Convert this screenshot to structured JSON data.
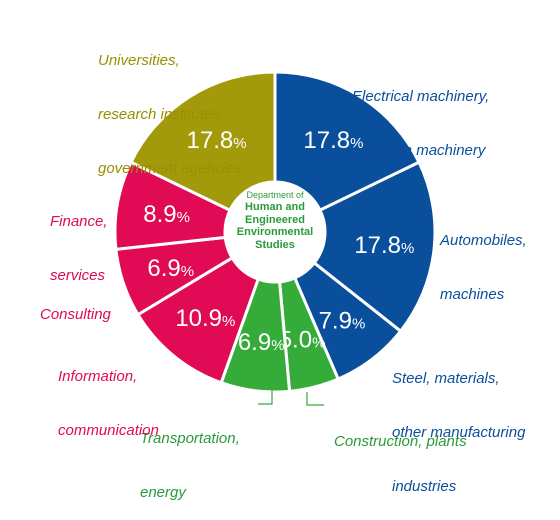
{
  "chart_data": {
    "type": "pie",
    "title": "",
    "center_label": {
      "line1": "Department of",
      "line2": "Human and",
      "line3": "Engineered",
      "line4": "Environmental",
      "line5": "Studies"
    },
    "slices": [
      {
        "name": "Electrical machinery, precision machinery",
        "value": 17.8,
        "label": "17.8",
        "color": "#0a4f9c"
      },
      {
        "name": "Automobiles, machines",
        "value": 17.8,
        "label": "17.8",
        "color": "#0a4f9c"
      },
      {
        "name": "Steel, materials, other manufacturing industries",
        "value": 7.9,
        "label": "7.9",
        "color": "#0a4f9c"
      },
      {
        "name": "Construction, plants",
        "value": 5.0,
        "label": "5.0",
        "color": "#35ab3a"
      },
      {
        "name": "Transportation, energy",
        "value": 6.9,
        "label": "6.9",
        "color": "#35ab3a"
      },
      {
        "name": "Information, communication",
        "value": 10.9,
        "label": "10.9",
        "color": "#e00a55"
      },
      {
        "name": "Consulting",
        "value": 6.9,
        "label": "6.9",
        "color": "#e00a55"
      },
      {
        "name": "Finance, services",
        "value": 8.9,
        "label": "8.9",
        "color": "#e00a55"
      },
      {
        "name": "Universities, research institutes, government agencies",
        "value": 17.8,
        "label": "17.8",
        "color": "#a39a0b"
      }
    ],
    "percent_sign": "%"
  },
  "labels": {
    "universities": [
      "Universities,",
      "research institutes,",
      "government agencies"
    ],
    "electrical": [
      "Electrical machinery,",
      "precision machinery"
    ],
    "automobiles": [
      "Automobiles,",
      "machines"
    ],
    "steel": [
      "Steel, materials,",
      "other manufacturing",
      "industries"
    ],
    "construction": [
      "Construction, plants"
    ],
    "transportation": [
      "Transportation,",
      "energy"
    ],
    "information": [
      "Information,",
      "communication"
    ],
    "consulting": [
      "Consulting"
    ],
    "finance": [
      "Finance,",
      "services"
    ]
  },
  "colors": {
    "blue_text": "#0a4f9c",
    "green_text": "#2a9a3a",
    "red_text": "#e00a55",
    "olive_text": "#9a8f00"
  }
}
